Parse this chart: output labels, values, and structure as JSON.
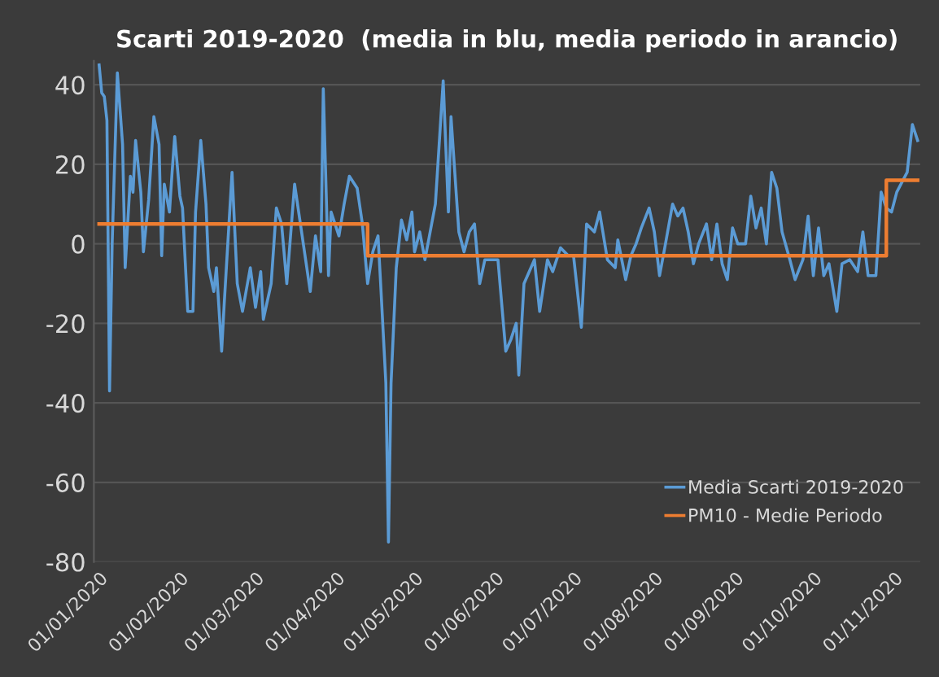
{
  "chart_data": {
    "type": "line",
    "title": "Scarti 2019-2020  (media in blu, media periodo in arancio)",
    "series": [
      {
        "name": "Media Scarti 2019-2020",
        "color": "#5b9bd5",
        "x": [
          "2020-01-01",
          "2020-01-02",
          "2020-01-03",
          "2020-01-04",
          "2020-01-05",
          "2020-01-06",
          "2020-01-08",
          "2020-01-10",
          "2020-01-11",
          "2020-01-13",
          "2020-01-14",
          "2020-01-15",
          "2020-01-17",
          "2020-01-18",
          "2020-01-20",
          "2020-01-22",
          "2020-01-24",
          "2020-01-25",
          "2020-01-26",
          "2020-01-28",
          "2020-01-29",
          "2020-01-30",
          "2020-02-01",
          "2020-02-02",
          "2020-02-04",
          "2020-02-06",
          "2020-02-07",
          "2020-02-09",
          "2020-02-11",
          "2020-02-12",
          "2020-02-14",
          "2020-02-15",
          "2020-02-17",
          "2020-02-18",
          "2020-02-21",
          "2020-02-23",
          "2020-02-25",
          "2020-02-28",
          "2020-03-01",
          "2020-03-03",
          "2020-03-04",
          "2020-03-07",
          "2020-03-09",
          "2020-03-11",
          "2020-03-13",
          "2020-03-16",
          "2020-03-18",
          "2020-03-20",
          "2020-03-22",
          "2020-03-24",
          "2020-03-26",
          "2020-03-27",
          "2020-03-29",
          "2020-03-30",
          "2020-04-02",
          "2020-04-04",
          "2020-04-06",
          "2020-04-09",
          "2020-04-11",
          "2020-04-13",
          "2020-04-15",
          "2020-04-17",
          "2020-04-18",
          "2020-04-20",
          "2020-04-21",
          "2020-04-22",
          "2020-04-24",
          "2020-04-26",
          "2020-04-28",
          "2020-04-30",
          "2020-05-01",
          "2020-05-03",
          "2020-05-05",
          "2020-05-07",
          "2020-05-09",
          "2020-05-12",
          "2020-05-14",
          "2020-05-15",
          "2020-05-18",
          "2020-05-20",
          "2020-05-22",
          "2020-05-24",
          "2020-05-26",
          "2020-05-28",
          "2020-06-02",
          "2020-06-05",
          "2020-06-07",
          "2020-06-09",
          "2020-06-10",
          "2020-06-12",
          "2020-06-16",
          "2020-06-18",
          "2020-06-21",
          "2020-06-23",
          "2020-06-26",
          "2020-06-29",
          "2020-07-01",
          "2020-07-04",
          "2020-07-06",
          "2020-07-09",
          "2020-07-11",
          "2020-07-14",
          "2020-07-17",
          "2020-07-18",
          "2020-07-21",
          "2020-07-23",
          "2020-07-25",
          "2020-07-27",
          "2020-07-30",
          "2020-08-01",
          "2020-08-03",
          "2020-08-05",
          "2020-08-08",
          "2020-08-10",
          "2020-08-12",
          "2020-08-14",
          "2020-08-16",
          "2020-08-18",
          "2020-08-21",
          "2020-08-23",
          "2020-08-25",
          "2020-08-27",
          "2020-08-29",
          "2020-08-31",
          "2020-09-02",
          "2020-09-05",
          "2020-09-07",
          "2020-09-09",
          "2020-09-11",
          "2020-09-13",
          "2020-09-15",
          "2020-09-17",
          "2020-09-19",
          "2020-09-22",
          "2020-09-24",
          "2020-09-27",
          "2020-09-29",
          "2020-10-01",
          "2020-10-03",
          "2020-10-05",
          "2020-10-07",
          "2020-10-10",
          "2020-10-12",
          "2020-10-15",
          "2020-10-18",
          "2020-10-20",
          "2020-10-22",
          "2020-10-25",
          "2020-10-27",
          "2020-10-29",
          "2020-10-31",
          "2020-11-02",
          "2020-11-06",
          "2020-11-08",
          "2020-11-10"
        ],
        "values": [
          45,
          38,
          37,
          31,
          -37,
          0,
          43,
          25,
          -6,
          17,
          13,
          26,
          13,
          -2,
          11,
          32,
          25,
          -3,
          15,
          8,
          18,
          27,
          12,
          9,
          -17,
          -17,
          8,
          26,
          10,
          -6,
          -12,
          -6,
          -27,
          -15,
          18,
          -10,
          -17,
          -6,
          -16,
          -7,
          -19,
          -10,
          9,
          5,
          -10,
          15,
          6,
          -3,
          -12,
          2,
          -7,
          39,
          -8,
          8,
          2,
          10,
          17,
          14,
          5,
          -10,
          -2,
          2,
          -10,
          -35,
          -75,
          -35,
          -6,
          6,
          1,
          8,
          -2,
          3,
          -4,
          3,
          10,
          41,
          8,
          32,
          3,
          -2,
          3,
          5,
          -10,
          -4,
          -4,
          -27,
          -24,
          -20,
          -33,
          -10,
          -4,
          -17,
          -4,
          -7,
          -1,
          -3,
          -3,
          -21,
          5,
          3,
          8,
          -4,
          -6,
          1,
          -9,
          -3,
          0,
          4,
          9,
          3,
          -8,
          -1,
          10,
          7,
          9,
          3,
          -5,
          0,
          5,
          -4,
          5,
          -5,
          -9,
          4,
          0,
          0,
          12,
          4,
          9,
          0,
          18,
          14,
          3,
          -4,
          -9,
          -4,
          7,
          -8,
          4,
          -8,
          -5,
          -17,
          -5,
          -4,
          -7,
          3,
          -8,
          -8,
          13,
          9,
          8,
          13,
          18,
          30,
          26
        ]
      },
      {
        "name": "PM10 - Medie Periodo",
        "color": "#ed7d31",
        "type": "step",
        "x": [
          "2020-01-01",
          "2020-04-13",
          "2020-10-29",
          "2020-11-10"
        ],
        "values": [
          5,
          -3,
          16,
          16
        ]
      }
    ],
    "xlim": [
      "2019-12-30",
      "2020-11-11"
    ],
    "xticks": [
      {
        "value": "2020-01-01",
        "label": "01/01/2020"
      },
      {
        "value": "2020-02-01",
        "label": "01/02/2020"
      },
      {
        "value": "2020-03-01",
        "label": "01/03/2020"
      },
      {
        "value": "2020-04-01",
        "label": "01/04/2020"
      },
      {
        "value": "2020-05-01",
        "label": "01/05/2020"
      },
      {
        "value": "2020-06-01",
        "label": "01/06/2020"
      },
      {
        "value": "2020-07-01",
        "label": "01/07/2020"
      },
      {
        "value": "2020-08-01",
        "label": "01/08/2020"
      },
      {
        "value": "2020-09-01",
        "label": "01/09/2020"
      },
      {
        "value": "2020-10-01",
        "label": "01/10/2020"
      },
      {
        "value": "2020-11-01",
        "label": "01/11/2020"
      }
    ],
    "ylim": [
      -80,
      46
    ],
    "yticks": [
      -80,
      -60,
      -40,
      -20,
      0,
      20,
      40
    ],
    "grid": "y",
    "legend": "bottom right"
  }
}
